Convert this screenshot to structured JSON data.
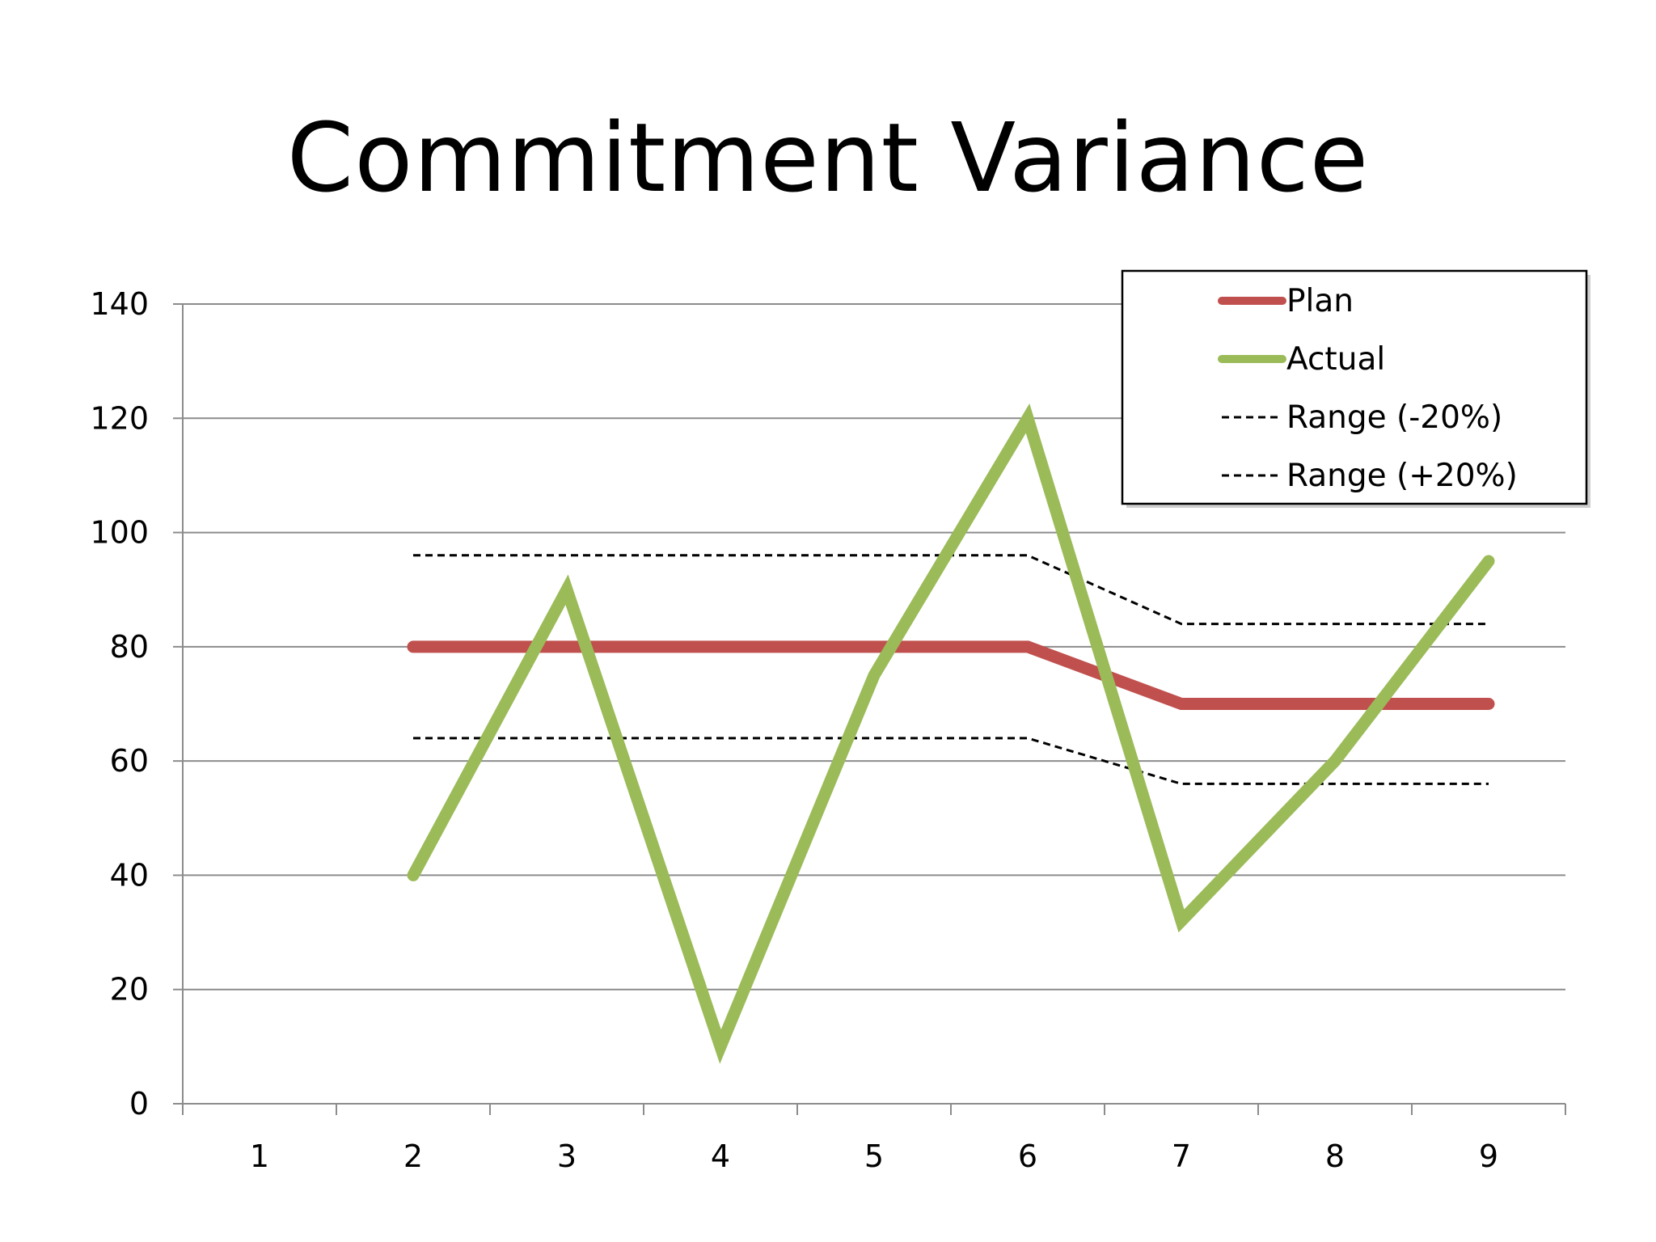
{
  "slide": {
    "title": "Commitment Variance"
  },
  "colors": {
    "plan": "#c0504d",
    "actual": "#9bbb59",
    "range": "#000000",
    "grid": "#8c8c8c",
    "axis": "#8c8c8c",
    "legend_border": "#000000"
  },
  "chart_data": {
    "type": "line",
    "title": "Commitment Variance",
    "xlabel": "",
    "ylabel": "",
    "categories": [
      "1",
      "2",
      "3",
      "4",
      "5",
      "6",
      "7",
      "8",
      "9"
    ],
    "ylim": [
      0,
      140
    ],
    "yticks": [
      0,
      20,
      40,
      60,
      80,
      100,
      120,
      140
    ],
    "grid": true,
    "legend_position": "top-right",
    "series": [
      {
        "name": "Plan",
        "style": "solid-thick",
        "color_key": "plan",
        "values": [
          null,
          80,
          80,
          80,
          80,
          80,
          70,
          70,
          70
        ]
      },
      {
        "name": "Actual",
        "style": "solid-thick",
        "color_key": "actual",
        "values": [
          null,
          40,
          90,
          10,
          75,
          120,
          32,
          60,
          95
        ]
      },
      {
        "name": "Range (-20%)",
        "style": "dashed",
        "color_key": "range",
        "values": [
          null,
          64,
          64,
          64,
          64,
          64,
          56,
          56,
          56
        ]
      },
      {
        "name": "Range (+20%)",
        "style": "dashed",
        "color_key": "range",
        "values": [
          null,
          96,
          96,
          96,
          96,
          96,
          84,
          84,
          84
        ]
      }
    ]
  }
}
